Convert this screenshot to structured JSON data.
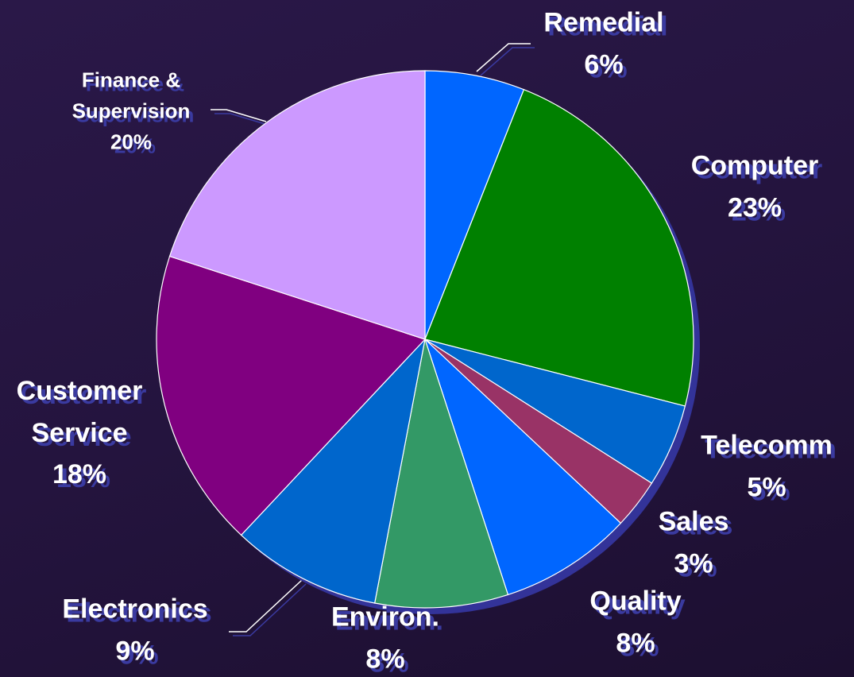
{
  "chart_data": {
    "type": "pie",
    "categories": [
      "Remedial",
      "Computer",
      "Telecomm",
      "Sales",
      "Quality",
      "Environ.",
      "Electronics",
      "Customer Service",
      "Finance & Supervision"
    ],
    "values": [
      6,
      23,
      5,
      3,
      8,
      8,
      9,
      18,
      20
    ],
    "value_labels": [
      "6%",
      "23%",
      "5%",
      "3%",
      "8%",
      "8%",
      "9%",
      "18%",
      "20%"
    ],
    "colors": [
      "#0066ff",
      "#008000",
      "#0066cc",
      "#993366",
      "#0066ff",
      "#339966",
      "#0066cc",
      "#800080",
      "#cc99ff"
    ]
  }
}
